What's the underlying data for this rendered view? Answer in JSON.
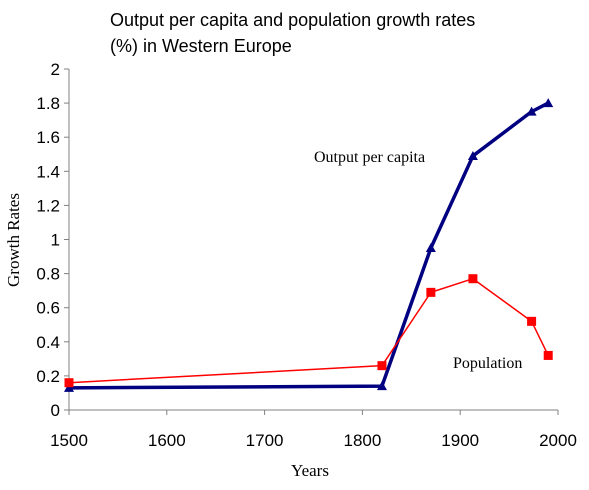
{
  "chart_data": {
    "type": "line",
    "title_lines": [
      "Output per capita and population growth rates",
      "(%) in Western Europe"
    ],
    "xlabel": "Years",
    "ylabel": "Growth Rates",
    "xlim": [
      1500,
      2000
    ],
    "ylim": [
      0,
      2
    ],
    "xticks": [
      1500,
      1600,
      1700,
      1800,
      1900,
      2000
    ],
    "yticks": [
      0,
      0.2,
      0.4,
      0.6,
      0.8,
      1,
      1.2,
      1.4,
      1.6,
      1.8,
      2
    ],
    "grid": false,
    "series": [
      {
        "name": "Output per capita",
        "color": "#000080",
        "marker": "triangle",
        "x": [
          1500,
          1820,
          1870,
          1913,
          1973,
          1990
        ],
        "y": [
          0.13,
          0.14,
          0.95,
          1.49,
          1.75,
          1.8
        ]
      },
      {
        "name": "Population",
        "color": "#ff0000",
        "marker": "square",
        "x": [
          1500,
          1820,
          1870,
          1913,
          1973,
          1990
        ],
        "y": [
          0.16,
          0.26,
          0.69,
          0.77,
          0.52,
          0.32
        ]
      }
    ]
  }
}
